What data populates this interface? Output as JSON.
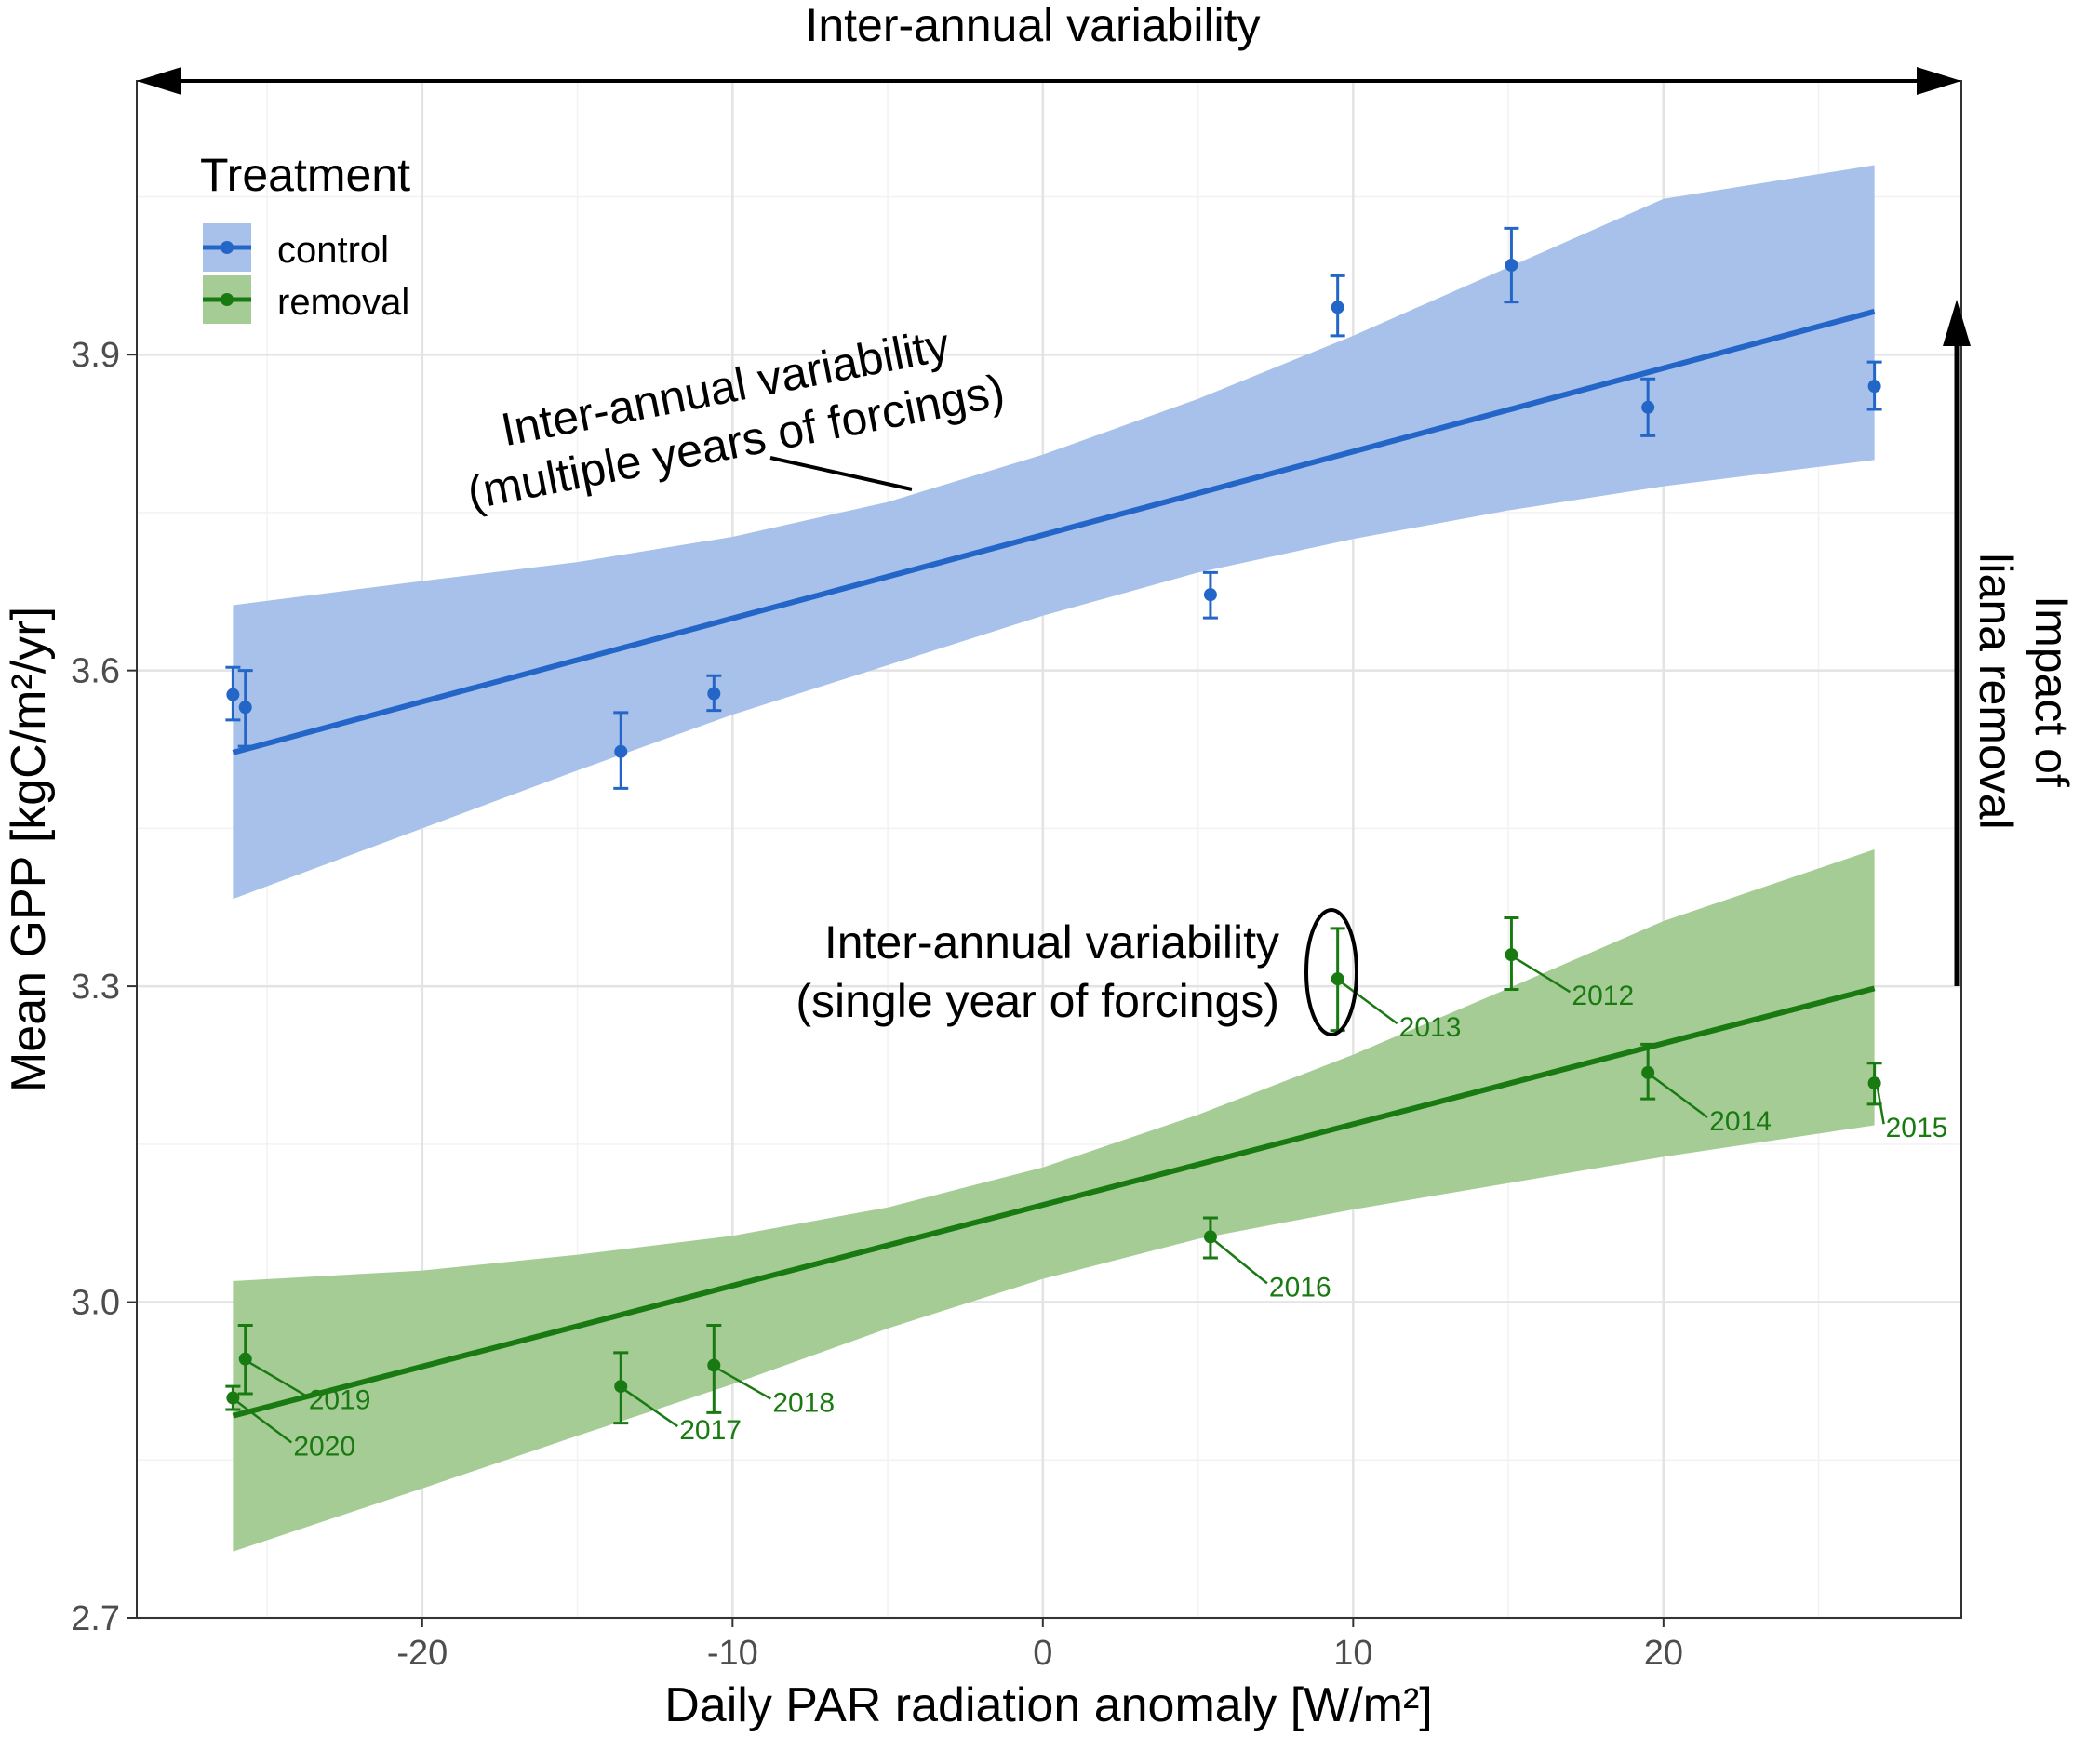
{
  "chart_data": {
    "type": "scatter",
    "xlabel": "Daily PAR radiation anomaly [W/m²]",
    "ylabel": "Mean GPP [kgC/m²/yr]",
    "xlim": [
      -29.2,
      29.6
    ],
    "ylim": [
      2.7,
      4.16
    ],
    "x_ticks": [
      -20,
      -10,
      0,
      10,
      20
    ],
    "x_tick_labels": [
      "-20",
      "-10",
      "0",
      "10",
      "20"
    ],
    "y_ticks": [
      2.7,
      3.0,
      3.3,
      3.6,
      3.9
    ],
    "y_tick_labels": [
      "2.7",
      "3.0",
      "3.3",
      "3.6",
      "3.9"
    ],
    "grid": true,
    "legend": {
      "title": "Treatment",
      "position": "top-left",
      "entries": [
        {
          "label": "control",
          "color": "#2466c8",
          "fill": "#a7c1ea"
        },
        {
          "label": "removal",
          "color": "#1a7a12",
          "fill": "#a6cc96"
        }
      ]
    },
    "series": [
      {
        "name": "control",
        "color": "#2466c8",
        "band_color": "#a7c1ea",
        "points": [
          {
            "x": -26.1,
            "y": 3.577,
            "lo": 3.553,
            "hi": 3.603
          },
          {
            "x": -25.7,
            "y": 3.565,
            "lo": 3.528,
            "hi": 3.6
          },
          {
            "x": -13.6,
            "y": 3.523,
            "lo": 3.488,
            "hi": 3.56
          },
          {
            "x": -10.6,
            "y": 3.578,
            "lo": 3.562,
            "hi": 3.595
          },
          {
            "x": 5.4,
            "y": 3.672,
            "lo": 3.65,
            "hi": 3.693
          },
          {
            "x": 9.5,
            "y": 3.945,
            "lo": 3.918,
            "hi": 3.975
          },
          {
            "x": 15.1,
            "y": 3.985,
            "lo": 3.95,
            "hi": 4.02
          },
          {
            "x": 19.5,
            "y": 3.85,
            "lo": 3.823,
            "hi": 3.877
          },
          {
            "x": 26.8,
            "y": 3.87,
            "lo": 3.848,
            "hi": 3.893
          }
        ],
        "fit": {
          "x": [
            -26.1,
            26.8
          ],
          "y": [
            3.522,
            3.941
          ]
        },
        "band": {
          "x": [
            -26.1,
            -20,
            -15,
            -10,
            -5,
            0,
            5,
            10,
            15,
            20,
            26.8
          ],
          "lower": [
            3.383,
            3.45,
            3.505,
            3.558,
            3.605,
            3.652,
            3.693,
            3.725,
            3.752,
            3.775,
            3.8
          ],
          "upper": [
            3.662,
            3.685,
            3.703,
            3.727,
            3.76,
            3.805,
            3.858,
            3.918,
            3.983,
            4.048,
            4.08
          ]
        }
      },
      {
        "name": "removal",
        "color": "#1a7a12",
        "band_color": "#a6cc96",
        "points": [
          {
            "x": -26.1,
            "y": 2.909,
            "lo": 2.898,
            "hi": 2.92,
            "year": "2020"
          },
          {
            "x": -25.7,
            "y": 2.946,
            "lo": 2.913,
            "hi": 2.978,
            "year": "2019"
          },
          {
            "x": -13.6,
            "y": 2.92,
            "lo": 2.885,
            "hi": 2.952,
            "year": "2017"
          },
          {
            "x": -10.6,
            "y": 2.94,
            "lo": 2.895,
            "hi": 2.978,
            "year": "2018"
          },
          {
            "x": 5.4,
            "y": 3.062,
            "lo": 3.042,
            "hi": 3.08,
            "year": "2016"
          },
          {
            "x": 9.5,
            "y": 3.307,
            "lo": 3.258,
            "hi": 3.355,
            "year": "2013"
          },
          {
            "x": 15.1,
            "y": 3.33,
            "lo": 3.297,
            "hi": 3.365,
            "year": "2012"
          },
          {
            "x": 19.5,
            "y": 3.218,
            "lo": 3.193,
            "hi": 3.245,
            "year": "2014"
          },
          {
            "x": 26.8,
            "y": 3.208,
            "lo": 3.188,
            "hi": 3.227,
            "year": "2015"
          }
        ],
        "fit": {
          "x": [
            -26.1,
            26.8
          ],
          "y": [
            2.892,
            3.298
          ]
        },
        "band": {
          "x": [
            -26.1,
            -20,
            -15,
            -10,
            -5,
            0,
            5,
            10,
            15,
            20,
            26.8
          ],
          "lower": [
            2.763,
            2.823,
            2.873,
            2.922,
            2.975,
            3.022,
            3.06,
            3.088,
            3.113,
            3.138,
            3.168
          ],
          "upper": [
            3.02,
            3.03,
            3.045,
            3.063,
            3.09,
            3.128,
            3.178,
            3.235,
            3.298,
            3.362,
            3.43
          ]
        }
      }
    ],
    "annotations": {
      "top_arrow": "Inter-annual variability",
      "multi_year_line1": "Inter-annual variability",
      "multi_year_line2": "(multiple years of forcings)",
      "single_year_line1": "Inter-annual variability",
      "single_year_line2": "(single year of forcings)",
      "impact_line1": "Impact of",
      "impact_line2": "liana removal"
    }
  }
}
